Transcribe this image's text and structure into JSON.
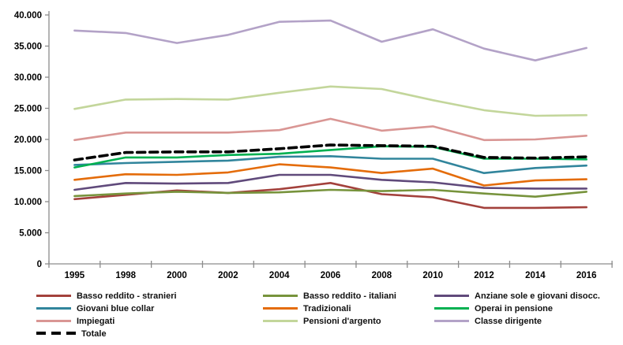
{
  "chart_data": {
    "type": "line",
    "title": "",
    "xlabel": "",
    "ylabel": "",
    "grid": false,
    "legend_position": "bottom",
    "categories": [
      "1995",
      "1998",
      "2000",
      "2002",
      "2004",
      "2006",
      "2008",
      "2010",
      "2012",
      "2014",
      "2016"
    ],
    "y_axis": {
      "min": 0,
      "max": 40000,
      "step": 5000,
      "tick_labels": [
        "0",
        "5.000",
        "10.000",
        "15.000",
        "20.000",
        "25.000",
        "30.000",
        "35.000",
        "40.000"
      ]
    },
    "series": [
      {
        "name": "Basso reddito - stranieri",
        "color": "#A3413C",
        "dashed": false,
        "values": [
          10400,
          11100,
          11800,
          11400,
          12000,
          13000,
          11200,
          10700,
          9000,
          9000,
          9100
        ]
      },
      {
        "name": "Basso reddito - italiani",
        "color": "#77933C",
        "dashed": false,
        "values": [
          10900,
          11300,
          11600,
          11400,
          11500,
          11900,
          11700,
          11900,
          11300,
          10800,
          11600
        ]
      },
      {
        "name": "Anziane sole e giovani disocc.",
        "color": "#604A7B",
        "dashed": false,
        "values": [
          11900,
          13000,
          12900,
          13000,
          14300,
          14300,
          13500,
          13100,
          12200,
          12100,
          12100
        ]
      },
      {
        "name": "Giovani blue collar",
        "color": "#31859C",
        "dashed": false,
        "values": [
          15900,
          16200,
          16400,
          16600,
          17200,
          17300,
          16900,
          16900,
          14600,
          15400,
          15800
        ]
      },
      {
        "name": "Tradizionali",
        "color": "#E46C0A",
        "dashed": false,
        "values": [
          13500,
          14400,
          14300,
          14700,
          16000,
          15500,
          14600,
          15300,
          12600,
          13400,
          13600
        ]
      },
      {
        "name": "Operai in pensione",
        "color": "#00B050",
        "dashed": false,
        "values": [
          15500,
          17100,
          17100,
          17500,
          17700,
          18300,
          18900,
          18800,
          16900,
          16900,
          16800
        ]
      },
      {
        "name": "Impiegati",
        "color": "#D99694",
        "dashed": false,
        "values": [
          19900,
          21100,
          21100,
          21100,
          21500,
          23300,
          21400,
          22100,
          19900,
          20000,
          20600
        ]
      },
      {
        "name": "Pensioni d'argento",
        "color": "#C3D69B",
        "dashed": false,
        "values": [
          24900,
          26400,
          26500,
          26400,
          27500,
          28500,
          28100,
          26300,
          24700,
          23800,
          23900
        ]
      },
      {
        "name": "Classe dirigente",
        "color": "#B3A2C7",
        "dashed": false,
        "values": [
          37500,
          37100,
          35500,
          36800,
          38900,
          39100,
          35700,
          37700,
          34600,
          32700,
          34700
        ]
      },
      {
        "name": "Totale",
        "color": "#000000",
        "dashed": true,
        "values": [
          16700,
          17900,
          18000,
          18000,
          18500,
          19100,
          19000,
          18900,
          17100,
          17000,
          17200
        ]
      }
    ],
    "legend_rows": [
      [
        0,
        1,
        2
      ],
      [
        3,
        4,
        5
      ],
      [
        6,
        7,
        8
      ],
      [
        9
      ]
    ]
  }
}
